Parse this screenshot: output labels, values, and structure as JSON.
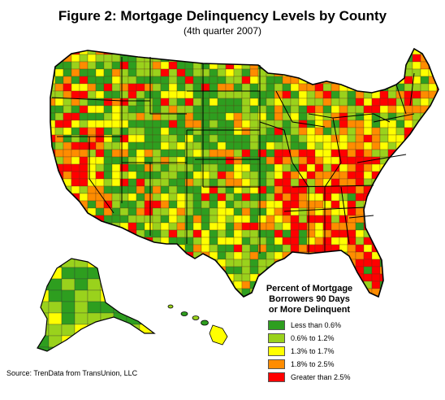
{
  "title": "Figure 2: Mortgage Delinquency Levels by County",
  "subtitle": "(4th quarter 2007)",
  "legend": {
    "title_lines": [
      "Percent of Mortgage",
      "Borrowers 90 Days",
      "or More Delinquent"
    ],
    "items": [
      {
        "label": "Less than 0.6%",
        "color": "#2e9e1f"
      },
      {
        "label": "0.6% to 1.2%",
        "color": "#9ad21c"
      },
      {
        "label": "1.3% to 1.7%",
        "color": "#ffff00"
      },
      {
        "label": "1.8% to 2.5%",
        "color": "#ff8c00"
      },
      {
        "label": "Greater than 2.5%",
        "color": "#ff0000"
      }
    ]
  },
  "source": "Source:  TrenData from TransUnion, LLC"
}
